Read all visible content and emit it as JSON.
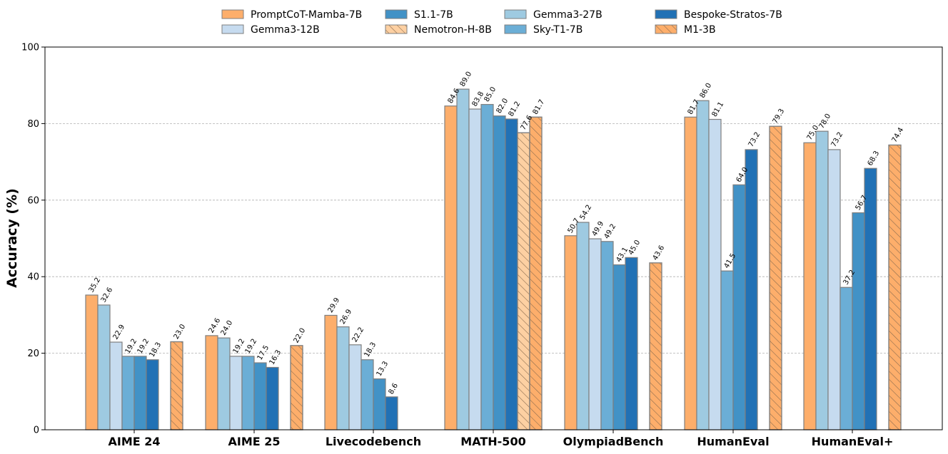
{
  "chart_data": {
    "type": "bar",
    "title": "",
    "xlabel": "",
    "ylabel": "Accuracy (%)",
    "ylim": [
      0,
      100
    ],
    "yticks": [
      "0",
      "20",
      "40",
      "60",
      "80",
      "100"
    ],
    "grid": "horizontal dashed",
    "legend_position": "top-center",
    "categories": [
      "AIME 24",
      "AIME 25",
      "Livecodebench",
      "MATH-500",
      "OlympiadBench",
      "HumanEval",
      "HumanEval+"
    ],
    "series": [
      {
        "name": "PromptCoT-Mamba-7B",
        "color": "#fdae6b",
        "hatch": false,
        "values": [
          35.2,
          24.6,
          29.9,
          84.6,
          50.7,
          81.7,
          75.0
        ]
      },
      {
        "name": "Gemma3-27B",
        "color": "#9ecae1",
        "hatch": false,
        "values": [
          32.6,
          24.0,
          26.9,
          89.0,
          54.2,
          86.0,
          78.0
        ]
      },
      {
        "name": "Gemma3-12B",
        "color": "#c6dbef",
        "hatch": false,
        "values": [
          22.9,
          19.2,
          22.2,
          83.8,
          49.9,
          81.1,
          73.2
        ]
      },
      {
        "name": "Sky-T1-7B",
        "color": "#6baed6",
        "hatch": false,
        "values": [
          19.2,
          19.2,
          18.3,
          85.0,
          49.2,
          41.5,
          37.2
        ]
      },
      {
        "name": "S1.1-7B",
        "color": "#4292c6",
        "hatch": false,
        "values": [
          19.2,
          17.5,
          13.3,
          82.0,
          43.1,
          64.0,
          56.7
        ]
      },
      {
        "name": "Bespoke-Stratos-7B",
        "color": "#2171b5",
        "hatch": false,
        "values": [
          18.3,
          16.3,
          8.6,
          81.2,
          45.0,
          73.2,
          68.3
        ]
      },
      {
        "name": "Nemotron-H-8B",
        "color": "#fdd0a2",
        "hatch": true,
        "values": [
          null,
          null,
          null,
          77.6,
          null,
          null,
          null
        ]
      },
      {
        "name": "M1-3B",
        "color": "#fdae6b",
        "hatch": true,
        "values": [
          23.0,
          22.0,
          null,
          81.7,
          43.6,
          79.3,
          74.4
        ]
      }
    ],
    "legend_order": [
      "PromptCoT-Mamba-7B",
      "Gemma3-12B",
      "S1.1-7B",
      "Nemotron-H-8B",
      "Gemma3-27B",
      "Sky-T1-7B",
      "Bespoke-Stratos-7B",
      "M1-3B"
    ]
  }
}
